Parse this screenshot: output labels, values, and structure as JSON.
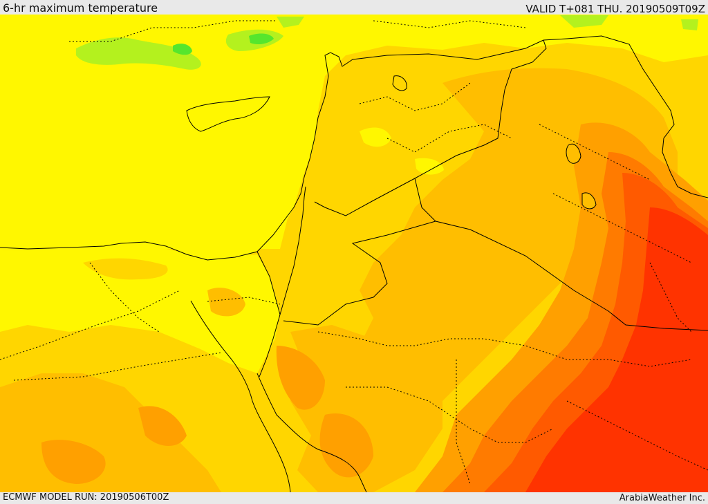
{
  "header": {
    "title": "6-hr maximum temperature",
    "valid": "VALID T+081 THU. 20190509T09Z"
  },
  "footer": {
    "model_run": "ECMWF MODEL RUN: 20190506T00Z",
    "credit": "ArabiaWeather Inc."
  },
  "map": {
    "variable": "6-hr maximum temperature",
    "palette": {
      "green": "#55e62d",
      "light_green": "#b4f11e",
      "yellow": "#fff700",
      "gold": "#ffd600",
      "light_orange": "#ffbe00",
      "orange": "#ffa000",
      "dark_orange": "#ff7b00",
      "red_orange": "#ff5a00",
      "red": "#ff3300",
      "border_line": "#000000"
    }
  }
}
